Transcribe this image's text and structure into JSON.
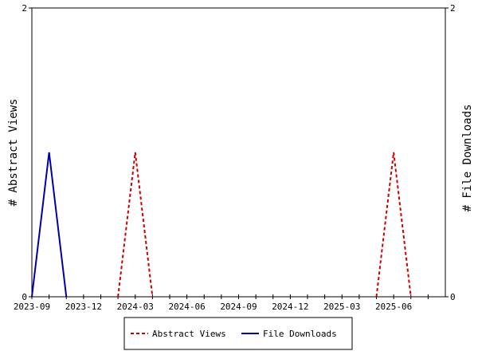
{
  "chart_data": {
    "type": "line",
    "x_unit": "month",
    "x": [
      "2023-09",
      "2023-10",
      "2023-11",
      "2023-12",
      "2024-01",
      "2024-02",
      "2024-03",
      "2024-04",
      "2024-05",
      "2024-06",
      "2024-07",
      "2024-08",
      "2024-09",
      "2024-10",
      "2024-11",
      "2024-12",
      "2025-01",
      "2025-02",
      "2025-03",
      "2025-04",
      "2025-05",
      "2025-06",
      "2025-07",
      "2025-08"
    ],
    "x_tick_labels": [
      "2023-09",
      "2023-12",
      "2024-03",
      "2024-06",
      "2024-09",
      "2024-12",
      "2025-03",
      "2025-06"
    ],
    "series": [
      {
        "name": "Abstract Views",
        "axis": "left",
        "color": "#cc0000",
        "style": "dashed",
        "values": [
          0,
          0,
          0,
          0,
          0,
          0,
          1,
          0,
          0,
          0,
          0,
          0,
          0,
          0,
          0,
          0,
          0,
          0,
          0,
          0,
          0,
          1,
          0,
          0
        ]
      },
      {
        "name": "File Downloads",
        "axis": "right",
        "color": "#0000aa",
        "style": "solid",
        "values": [
          0,
          1,
          0,
          0,
          0,
          0,
          0,
          0,
          0,
          0,
          0,
          0,
          0,
          0,
          0,
          0,
          0,
          0,
          0,
          0,
          0,
          0,
          0,
          0
        ]
      }
    ],
    "ylabel_left": "# Abstract Views",
    "ylabel_right": "# File Downloads",
    "ylim_left": [
      0,
      2
    ],
    "ylim_right": [
      0,
      2
    ],
    "y_ticks_left": [
      "0",
      "2"
    ],
    "y_ticks_right": [
      "0",
      "2"
    ],
    "grid": false,
    "legend_position": "bottom-center"
  }
}
